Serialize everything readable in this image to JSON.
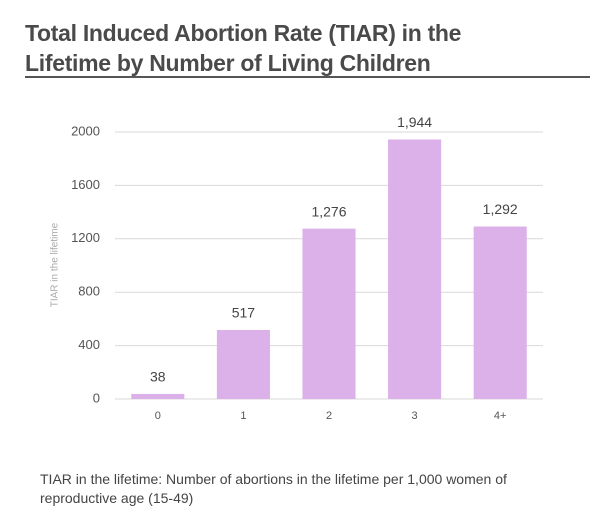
{
  "chart_data": {
    "type": "bar",
    "title": "Total Induced Abortion Rate (TIAR) in the Lifetime by Number of Living Children",
    "y_label": "TIAR in the lifetime",
    "categories": [
      "0",
      "1",
      "2",
      "3",
      "4+"
    ],
    "values": [
      38,
      517,
      1276,
      1944,
      1292
    ],
    "value_labels": [
      "38",
      "517",
      "1,276",
      "1,944",
      "1,292"
    ],
    "color": "#dcb0e8",
    "ylim": [
      0,
      2000
    ],
    "yticks": [
      0,
      400,
      800,
      1200,
      1600,
      2000
    ],
    "grid": true,
    "note": "TIAR in the lifetime: Number of abortions in the lifetime per 1,000 women of reproductive age (15-49)"
  }
}
